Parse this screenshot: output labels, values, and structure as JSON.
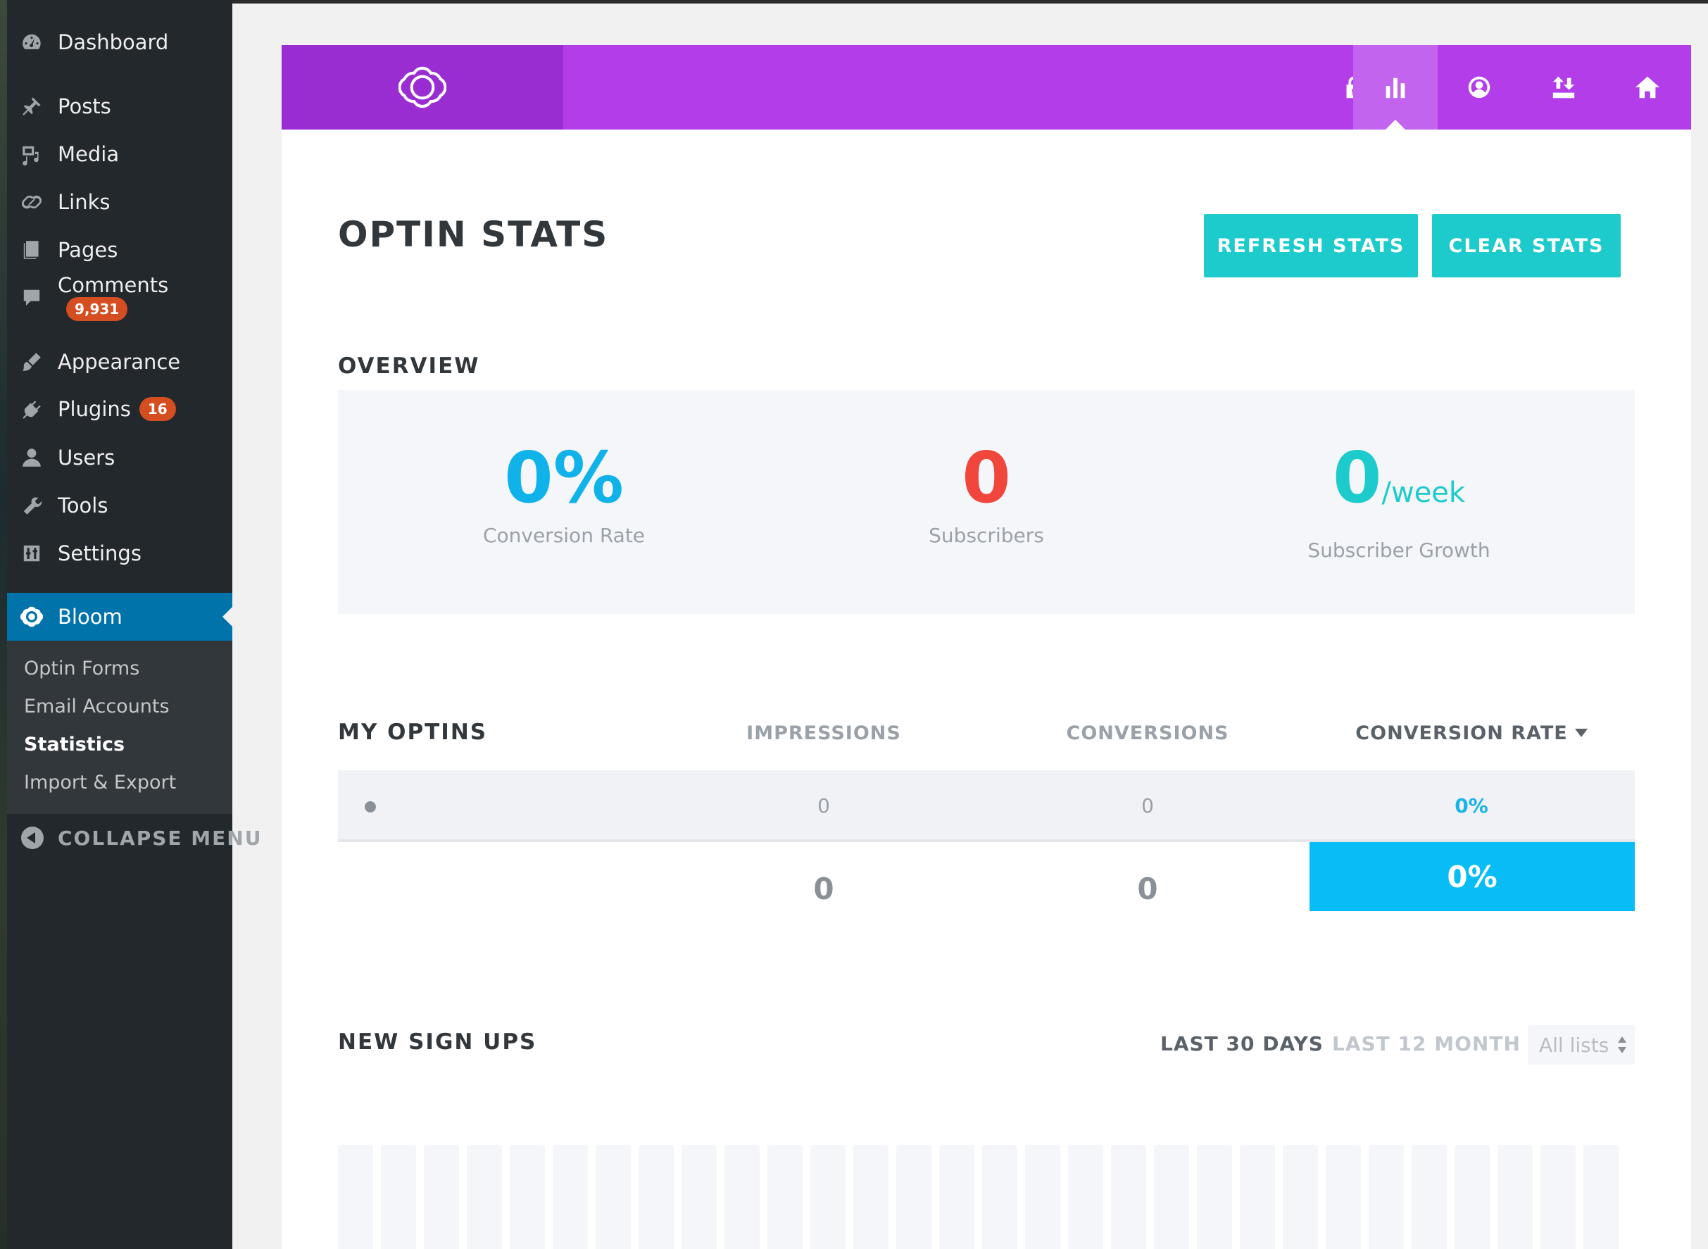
{
  "sidebar": {
    "items": [
      {
        "label": "Dashboard",
        "icon": "dashboard-icon"
      },
      {
        "label": "Posts",
        "icon": "pin-icon"
      },
      {
        "label": "Media",
        "icon": "media-icon"
      },
      {
        "label": "Links",
        "icon": "link-icon"
      },
      {
        "label": "Pages",
        "icon": "pages-icon"
      },
      {
        "label": "Comments",
        "icon": "comment-icon",
        "badge": "9,931"
      },
      {
        "label": "Appearance",
        "icon": "brush-icon"
      },
      {
        "label": "Plugins",
        "icon": "plugin-icon",
        "badge": "16"
      },
      {
        "label": "Users",
        "icon": "user-icon"
      },
      {
        "label": "Tools",
        "icon": "wrench-icon"
      },
      {
        "label": "Settings",
        "icon": "settings-icon"
      },
      {
        "label": "Bloom",
        "icon": "bloom-icon",
        "active": true
      }
    ],
    "submenu": [
      "Optin Forms",
      "Email Accounts",
      "Statistics",
      "Import & Export"
    ],
    "submenu_current": "Statistics",
    "collapse_label": "COLLAPSE MENU"
  },
  "header": {
    "logo_icon": "bloom-logo-icon",
    "nav_icons": [
      "lock-icon",
      "bar-chart-icon",
      "account-icon",
      "import-export-icon",
      "home-icon"
    ],
    "active_nav": "bar-chart-icon"
  },
  "page": {
    "title": "OPTIN STATS",
    "refresh_label": "REFRESH STATS",
    "clear_label": "CLEAR STATS"
  },
  "overview": {
    "title": "OVERVIEW",
    "conversion_rate": {
      "value": "0%",
      "caption": "Conversion Rate",
      "color": "#0fb3ea"
    },
    "subscribers": {
      "value": "0",
      "caption": "Subscribers",
      "color": "#f0463c"
    },
    "growth": {
      "value": "0",
      "unit": "/week",
      "caption": "Subscriber Growth",
      "color": "#1ecbcc"
    }
  },
  "optins": {
    "title": "MY OPTINS",
    "columns": {
      "impressions": "IMPRESSIONS",
      "conversions": "CONVERSIONS",
      "rate": "CONVERSION RATE"
    },
    "rows": [
      {
        "impressions": "0",
        "conversions": "0",
        "rate": "0%"
      }
    ],
    "totals": {
      "impressions": "0",
      "conversions": "0",
      "rate": "0%"
    }
  },
  "signups": {
    "title": "NEW SIGN UPS",
    "range_active": "LAST 30 DAYS",
    "range_other": "LAST 12 MONTH",
    "list_select": "All lists",
    "bar_count": 30
  },
  "colors": {
    "purple": "#b33ee9",
    "purple_dark": "#9a2dd2",
    "teal": "#1ecbcc",
    "blue": "#08bdf5",
    "wp_active": "#0073aa"
  }
}
